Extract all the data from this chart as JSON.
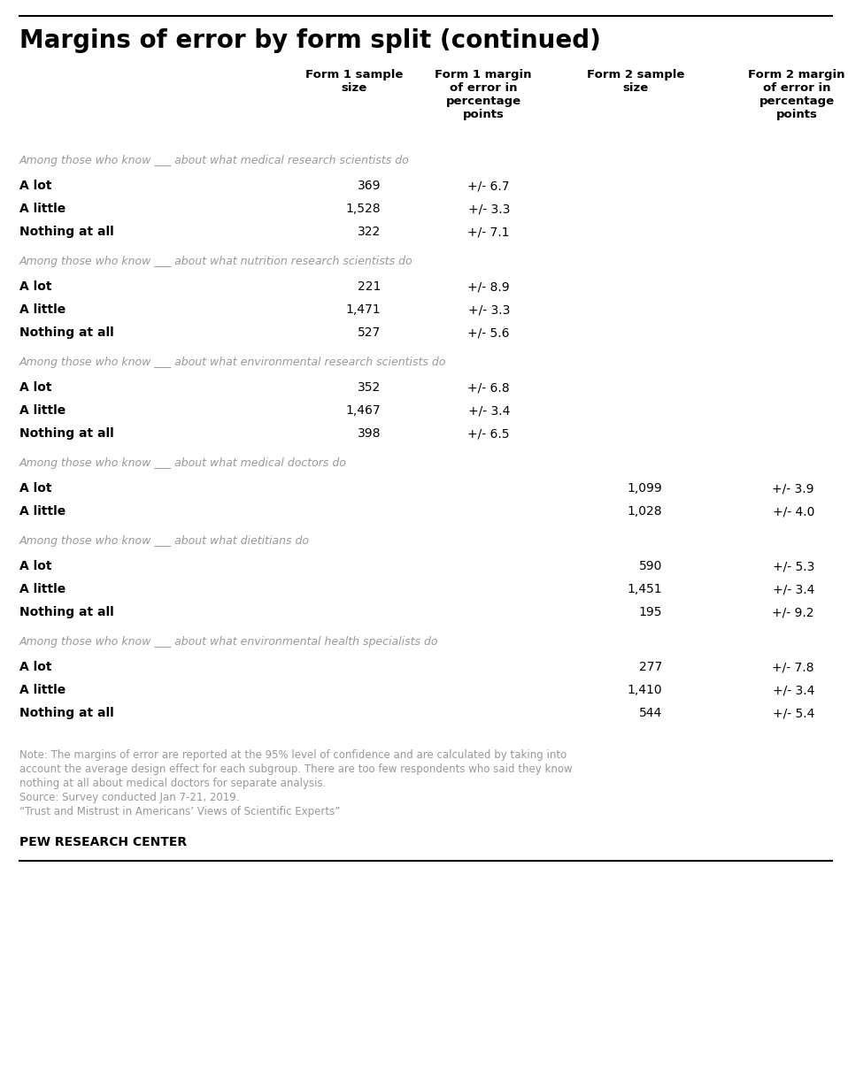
{
  "title": "Margins of error by form split (continued)",
  "col_headers": [
    "Form 1 sample\nsize",
    "Form 1 margin\nof error in\npercentage\npoints",
    "Form 2 sample\nsize",
    "Form 2 margin\nof error in\npercentage\npoints"
  ],
  "sections": [
    {
      "header": "Among those who know ___ about what medical research scientists do",
      "rows": [
        {
          "label": "A lot",
          "f1_size": "369",
          "f1_moe": "+/- 6.7",
          "f2_size": "",
          "f2_moe": ""
        },
        {
          "label": "A little",
          "f1_size": "1,528",
          "f1_moe": "+/- 3.3",
          "f2_size": "",
          "f2_moe": ""
        },
        {
          "label": "Nothing at all",
          "f1_size": "322",
          "f1_moe": "+/- 7.1",
          "f2_size": "",
          "f2_moe": ""
        }
      ]
    },
    {
      "header": "Among those who know ___ about what nutrition research scientists do",
      "rows": [
        {
          "label": "A lot",
          "f1_size": "221",
          "f1_moe": "+/- 8.9",
          "f2_size": "",
          "f2_moe": ""
        },
        {
          "label": "A little",
          "f1_size": "1,471",
          "f1_moe": "+/- 3.3",
          "f2_size": "",
          "f2_moe": ""
        },
        {
          "label": "Nothing at all",
          "f1_size": "527",
          "f1_moe": "+/- 5.6",
          "f2_size": "",
          "f2_moe": ""
        }
      ]
    },
    {
      "header": "Among those who know ___ about what environmental research scientists do",
      "rows": [
        {
          "label": "A lot",
          "f1_size": "352",
          "f1_moe": "+/- 6.8",
          "f2_size": "",
          "f2_moe": ""
        },
        {
          "label": "A little",
          "f1_size": "1,467",
          "f1_moe": "+/- 3.4",
          "f2_size": "",
          "f2_moe": ""
        },
        {
          "label": "Nothing at all",
          "f1_size": "398",
          "f1_moe": "+/- 6.5",
          "f2_size": "",
          "f2_moe": ""
        }
      ]
    },
    {
      "header": "Among those who know ___ about what medical doctors do",
      "rows": [
        {
          "label": "A lot",
          "f1_size": "",
          "f1_moe": "",
          "f2_size": "1,099",
          "f2_moe": "+/- 3.9"
        },
        {
          "label": "A little",
          "f1_size": "",
          "f1_moe": "",
          "f2_size": "1,028",
          "f2_moe": "+/- 4.0"
        }
      ]
    },
    {
      "header": "Among those who know ___ about what dietitians do",
      "rows": [
        {
          "label": "A lot",
          "f1_size": "",
          "f1_moe": "",
          "f2_size": "590",
          "f2_moe": "+/- 5.3"
        },
        {
          "label": "A little",
          "f1_size": "",
          "f1_moe": "",
          "f2_size": "1,451",
          "f2_moe": "+/- 3.4"
        },
        {
          "label": "Nothing at all",
          "f1_size": "",
          "f1_moe": "",
          "f2_size": "195",
          "f2_moe": "+/- 9.2"
        }
      ]
    },
    {
      "header": "Among those who know ___ about what environmental health specialists do",
      "rows": [
        {
          "label": "A lot",
          "f1_size": "",
          "f1_moe": "",
          "f2_size": "277",
          "f2_moe": "+/- 7.8"
        },
        {
          "label": "A little",
          "f1_size": "",
          "f1_moe": "",
          "f2_size": "1,410",
          "f2_moe": "+/- 3.4"
        },
        {
          "label": "Nothing at all",
          "f1_size": "",
          "f1_moe": "",
          "f2_size": "544",
          "f2_moe": "+/- 5.4"
        }
      ]
    }
  ],
  "note_lines": [
    "Note: The margins of error are reported at the 95% level of confidence and are calculated by taking into",
    "account the average design effect for each subgroup. There are too few respondents who said they know",
    "nothing at all about medical doctors for separate analysis.",
    "Source: Survey conducted Jan 7-21, 2019.",
    "“Trust and Mistrust in Americans’ Views of Scientific Experts”"
  ],
  "footer": "PEW RESEARCH CENTER",
  "bg_color": "#ffffff",
  "title_color": "#000000",
  "header_color": "#999999",
  "row_label_color": "#000000",
  "data_color": "#000000",
  "col_header_color": "#000000",
  "note_color": "#999999",
  "top_line_color": "#000000",
  "bottom_line_color": "#000000"
}
